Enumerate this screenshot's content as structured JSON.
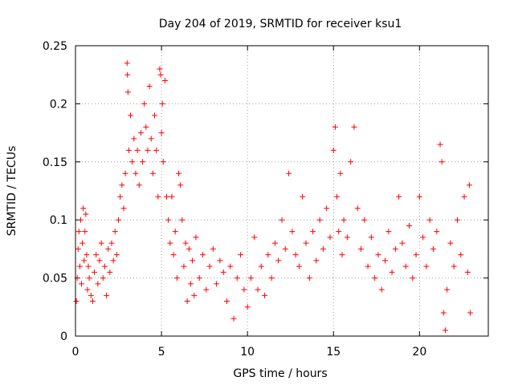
{
  "chart_data": {
    "type": "scatter",
    "title": "Day 204 of 2019, SRMTID for receiver ksu1",
    "xlabel": "GPS time / hours",
    "ylabel": "SRMTID / TECUs",
    "xlim": [
      0,
      24
    ],
    "ylim": [
      0,
      0.25
    ],
    "xticks": [
      0,
      5,
      10,
      15,
      20
    ],
    "yticks": [
      0,
      0.05,
      0.1,
      0.15,
      0.2,
      0.25
    ],
    "xtick_labels": [
      "0",
      "5",
      "10",
      "15",
      "20"
    ],
    "ytick_labels": [
      "0",
      "0.05",
      "0.1",
      "0.15",
      "0.2",
      "0.25"
    ],
    "grid": true,
    "marker": "+",
    "color": "#ff0000",
    "series": [
      {
        "name": "SRMTID",
        "points": [
          [
            0.05,
            0.03
          ],
          [
            0.1,
            0.05
          ],
          [
            0.15,
            0.075
          ],
          [
            0.2,
            0.09
          ],
          [
            0.25,
            0.06
          ],
          [
            0.3,
            0.1
          ],
          [
            0.35,
            0.045
          ],
          [
            0.4,
            0.08
          ],
          [
            0.45,
            0.11
          ],
          [
            0.5,
            0.065
          ],
          [
            0.55,
            0.09
          ],
          [
            0.6,
            0.105
          ],
          [
            0.65,
            0.07
          ],
          [
            0.7,
            0.04
          ],
          [
            0.75,
            0.06
          ],
          [
            0.8,
            0.05
          ],
          [
            0.9,
            0.035
          ],
          [
            1.0,
            0.03
          ],
          [
            1.1,
            0.055
          ],
          [
            1.2,
            0.07
          ],
          [
            1.3,
            0.045
          ],
          [
            1.4,
            0.065
          ],
          [
            1.5,
            0.08
          ],
          [
            1.6,
            0.05
          ],
          [
            1.7,
            0.06
          ],
          [
            1.8,
            0.035
          ],
          [
            1.9,
            0.075
          ],
          [
            2.0,
            0.055
          ],
          [
            2.1,
            0.08
          ],
          [
            2.2,
            0.065
          ],
          [
            2.3,
            0.09
          ],
          [
            2.4,
            0.07
          ],
          [
            2.5,
            0.1
          ],
          [
            2.6,
            0.12
          ],
          [
            2.7,
            0.13
          ],
          [
            2.8,
            0.11
          ],
          [
            2.9,
            0.14
          ],
          [
            3.0,
            0.235
          ],
          [
            3.02,
            0.225
          ],
          [
            3.05,
            0.21
          ],
          [
            3.1,
            0.16
          ],
          [
            3.2,
            0.19
          ],
          [
            3.3,
            0.15
          ],
          [
            3.4,
            0.17
          ],
          [
            3.5,
            0.14
          ],
          [
            3.6,
            0.16
          ],
          [
            3.7,
            0.13
          ],
          [
            3.8,
            0.175
          ],
          [
            3.9,
            0.15
          ],
          [
            4.0,
            0.2
          ],
          [
            4.1,
            0.18
          ],
          [
            4.2,
            0.16
          ],
          [
            4.3,
            0.215
          ],
          [
            4.4,
            0.17
          ],
          [
            4.5,
            0.14
          ],
          [
            4.6,
            0.19
          ],
          [
            4.7,
            0.16
          ],
          [
            4.8,
            0.12
          ],
          [
            4.9,
            0.23
          ],
          [
            4.95,
            0.225
          ],
          [
            5.0,
            0.175
          ],
          [
            5.05,
            0.2
          ],
          [
            5.1,
            0.15
          ],
          [
            5.2,
            0.22
          ],
          [
            5.3,
            0.12
          ],
          [
            5.4,
            0.1
          ],
          [
            5.5,
            0.08
          ],
          [
            5.6,
            0.12
          ],
          [
            5.7,
            0.07
          ],
          [
            5.8,
            0.09
          ],
          [
            5.9,
            0.05
          ],
          [
            6.0,
            0.14
          ],
          [
            6.1,
            0.13
          ],
          [
            6.2,
            0.1
          ],
          [
            6.3,
            0.06
          ],
          [
            6.4,
            0.08
          ],
          [
            6.5,
            0.03
          ],
          [
            6.6,
            0.075
          ],
          [
            6.7,
            0.045
          ],
          [
            6.8,
            0.065
          ],
          [
            6.9,
            0.035
          ],
          [
            7.0,
            0.085
          ],
          [
            7.2,
            0.05
          ],
          [
            7.4,
            0.07
          ],
          [
            7.6,
            0.04
          ],
          [
            7.8,
            0.06
          ],
          [
            8.0,
            0.075
          ],
          [
            8.2,
            0.045
          ],
          [
            8.4,
            0.065
          ],
          [
            8.6,
            0.055
          ],
          [
            8.8,
            0.03
          ],
          [
            9.0,
            0.06
          ],
          [
            9.2,
            0.015
          ],
          [
            9.4,
            0.05
          ],
          [
            9.6,
            0.07
          ],
          [
            9.8,
            0.04
          ],
          [
            10.0,
            0.025
          ],
          [
            10.2,
            0.05
          ],
          [
            10.4,
            0.085
          ],
          [
            10.6,
            0.04
          ],
          [
            10.8,
            0.06
          ],
          [
            11.0,
            0.035
          ],
          [
            11.2,
            0.07
          ],
          [
            11.4,
            0.05
          ],
          [
            11.6,
            0.08
          ],
          [
            11.8,
            0.065
          ],
          [
            12.0,
            0.1
          ],
          [
            12.2,
            0.075
          ],
          [
            12.4,
            0.14
          ],
          [
            12.6,
            0.09
          ],
          [
            12.8,
            0.07
          ],
          [
            13.0,
            0.06
          ],
          [
            13.2,
            0.12
          ],
          [
            13.4,
            0.08
          ],
          [
            13.6,
            0.05
          ],
          [
            13.8,
            0.09
          ],
          [
            14.0,
            0.065
          ],
          [
            14.2,
            0.1
          ],
          [
            14.4,
            0.075
          ],
          [
            14.6,
            0.11
          ],
          [
            14.8,
            0.085
          ],
          [
            15.0,
            0.16
          ],
          [
            15.1,
            0.18
          ],
          [
            15.2,
            0.12
          ],
          [
            15.3,
            0.09
          ],
          [
            15.4,
            0.14
          ],
          [
            15.5,
            0.07
          ],
          [
            15.6,
            0.1
          ],
          [
            15.8,
            0.085
          ],
          [
            16.0,
            0.15
          ],
          [
            16.2,
            0.18
          ],
          [
            16.4,
            0.11
          ],
          [
            16.6,
            0.075
          ],
          [
            16.8,
            0.1
          ],
          [
            17.0,
            0.06
          ],
          [
            17.2,
            0.085
          ],
          [
            17.4,
            0.05
          ],
          [
            17.6,
            0.07
          ],
          [
            17.8,
            0.04
          ],
          [
            18.0,
            0.065
          ],
          [
            18.2,
            0.09
          ],
          [
            18.4,
            0.055
          ],
          [
            18.6,
            0.075
          ],
          [
            18.8,
            0.12
          ],
          [
            19.0,
            0.08
          ],
          [
            19.2,
            0.06
          ],
          [
            19.4,
            0.095
          ],
          [
            19.6,
            0.05
          ],
          [
            19.8,
            0.07
          ],
          [
            20.0,
            0.12
          ],
          [
            20.2,
            0.085
          ],
          [
            20.4,
            0.06
          ],
          [
            20.6,
            0.1
          ],
          [
            20.8,
            0.075
          ],
          [
            21.0,
            0.09
          ],
          [
            21.2,
            0.165
          ],
          [
            21.3,
            0.15
          ],
          [
            21.4,
            0.02
          ],
          [
            21.5,
            0.005
          ],
          [
            21.6,
            0.04
          ],
          [
            21.8,
            0.08
          ],
          [
            22.0,
            0.06
          ],
          [
            22.2,
            0.1
          ],
          [
            22.4,
            0.07
          ],
          [
            22.6,
            0.12
          ],
          [
            22.8,
            0.055
          ],
          [
            22.9,
            0.13
          ],
          [
            22.95,
            0.02
          ]
        ]
      }
    ]
  }
}
